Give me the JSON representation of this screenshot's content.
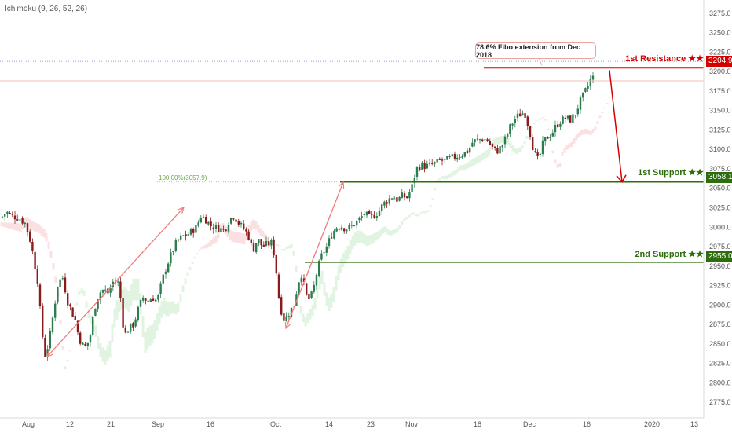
{
  "indicator_label": "Ichimoku (9, 26, 52, 26)",
  "annotations": {
    "fibo_note": "78.6% Fibo extension from Dec 2018",
    "fib_level_label": "100.00%(3057.9)",
    "resistance": {
      "label": "1st Resistance ★★",
      "price": "3204.9",
      "value": 3204.9
    },
    "support1": {
      "label": "1st Support ★★",
      "price": "3058.1",
      "value": 3058.1
    },
    "support2": {
      "label": "2nd Support ★★",
      "price": "2955.0",
      "value": 2955.0
    }
  },
  "colors": {
    "resistance": "#d40000",
    "support": "#2d6d0d",
    "bull_candle": "#2e7d4f",
    "bear_candle": "#8b1a1a",
    "cloud_bull": "#c8ebc8",
    "cloud_bear": "#f5c6c6",
    "projection_arrow": "#f08080"
  },
  "chart_data": {
    "type": "candlestick",
    "y_axis_ticks": [
      "3275.0",
      "3250.0",
      "3225.0",
      "3200.0",
      "3175.0",
      "3150.0",
      "3125.0",
      "3100.0",
      "3075.0",
      "3050.0",
      "3025.0",
      "3000.0",
      "2975.0",
      "2950.0",
      "2925.0",
      "2900.0",
      "2875.0",
      "2850.0",
      "2825.0",
      "2800.0",
      "2775.0"
    ],
    "y_range": [
      2755,
      3292
    ],
    "x_axis_ticks": [
      "Aug",
      "12",
      "21",
      "Sep",
      "16",
      "Oct",
      "14",
      "23",
      "Nov",
      "18",
      "Dec",
      "16",
      "2020",
      "13"
    ],
    "price_path": [
      [
        0,
        3010
      ],
      [
        8,
        3020
      ],
      [
        14,
        3015
      ],
      [
        24,
        3012
      ],
      [
        32,
        3005
      ],
      [
        38,
        2985
      ],
      [
        43,
        2960
      ],
      [
        48,
        2930
      ],
      [
        53,
        2870
      ],
      [
        57,
        2835
      ],
      [
        62,
        2850
      ],
      [
        68,
        2890
      ],
      [
        74,
        2930
      ],
      [
        80,
        2935
      ],
      [
        86,
        2905
      ],
      [
        92,
        2890
      ],
      [
        96,
        2880
      ],
      [
        100,
        2860
      ],
      [
        104,
        2850
      ],
      [
        108,
        2845
      ],
      [
        114,
        2855
      ],
      [
        120,
        2895
      ],
      [
        126,
        2915
      ],
      [
        132,
        2920
      ],
      [
        138,
        2915
      ],
      [
        144,
        2930
      ],
      [
        150,
        2930
      ],
      [
        154,
        2905
      ],
      [
        158,
        2860
      ],
      [
        164,
        2870
      ],
      [
        170,
        2875
      ],
      [
        176,
        2895
      ],
      [
        182,
        2910
      ],
      [
        188,
        2905
      ],
      [
        194,
        2910
      ],
      [
        200,
        2905
      ],
      [
        206,
        2930
      ],
      [
        212,
        2950
      ],
      [
        218,
        2965
      ],
      [
        224,
        2980
      ],
      [
        232,
        2988
      ],
      [
        238,
        2990
      ],
      [
        244,
        2995
      ],
      [
        250,
        3000
      ],
      [
        256,
        3015
      ],
      [
        262,
        3010
      ],
      [
        268,
        3002
      ],
      [
        274,
        3000
      ],
      [
        280,
        2998
      ],
      [
        286,
        2996
      ],
      [
        292,
        3010
      ],
      [
        298,
        3015
      ],
      [
        304,
        3005
      ],
      [
        310,
        2998
      ],
      [
        316,
        2990
      ],
      [
        322,
        2970
      ],
      [
        328,
        2985
      ],
      [
        334,
        2975
      ],
      [
        340,
        2978
      ],
      [
        346,
        2980
      ],
      [
        350,
        2960
      ],
      [
        356,
        2900
      ],
      [
        362,
        2880
      ],
      [
        368,
        2890
      ],
      [
        374,
        2900
      ],
      [
        380,
        2930
      ],
      [
        384,
        2940
      ],
      [
        388,
        2920
      ],
      [
        392,
        2905
      ],
      [
        398,
        2915
      ],
      [
        404,
        2945
      ],
      [
        410,
        2965
      ],
      [
        416,
        2975
      ],
      [
        422,
        2990
      ],
      [
        428,
        3000
      ],
      [
        434,
        3002
      ],
      [
        440,
        2998
      ],
      [
        446,
        3000
      ],
      [
        452,
        3005
      ],
      [
        458,
        3010
      ],
      [
        464,
        3018
      ],
      [
        470,
        3012
      ],
      [
        476,
        3015
      ],
      [
        482,
        3020
      ],
      [
        488,
        3030
      ],
      [
        494,
        3035
      ],
      [
        500,
        3040
      ],
      [
        506,
        3035
      ],
      [
        512,
        3040
      ],
      [
        518,
        3038
      ],
      [
        524,
        3050
      ],
      [
        530,
        3075
      ],
      [
        536,
        3080
      ],
      [
        542,
        3078
      ],
      [
        548,
        3080
      ],
      [
        554,
        3082
      ],
      [
        560,
        3086
      ],
      [
        566,
        3085
      ],
      [
        572,
        3088
      ],
      [
        578,
        3090
      ],
      [
        584,
        3092
      ],
      [
        590,
        3095
      ],
      [
        596,
        3098
      ],
      [
        602,
        3110
      ],
      [
        608,
        3112
      ],
      [
        614,
        3114
      ],
      [
        620,
        3112
      ],
      [
        626,
        3103
      ],
      [
        632,
        3097
      ],
      [
        638,
        3103
      ],
      [
        644,
        3115
      ],
      [
        650,
        3130
      ],
      [
        656,
        3140
      ],
      [
        662,
        3145
      ],
      [
        668,
        3148
      ],
      [
        674,
        3125
      ],
      [
        680,
        3095
      ],
      [
        686,
        3085
      ],
      [
        690,
        3105
      ],
      [
        696,
        3115
      ],
      [
        702,
        3120
      ],
      [
        708,
        3130
      ],
      [
        714,
        3137
      ],
      [
        720,
        3140
      ],
      [
        726,
        3138
      ],
      [
        732,
        3145
      ],
      [
        738,
        3160
      ],
      [
        744,
        3172
      ],
      [
        748,
        3180
      ],
      [
        752,
        3190
      ],
      [
        756,
        3193
      ]
    ]
  }
}
